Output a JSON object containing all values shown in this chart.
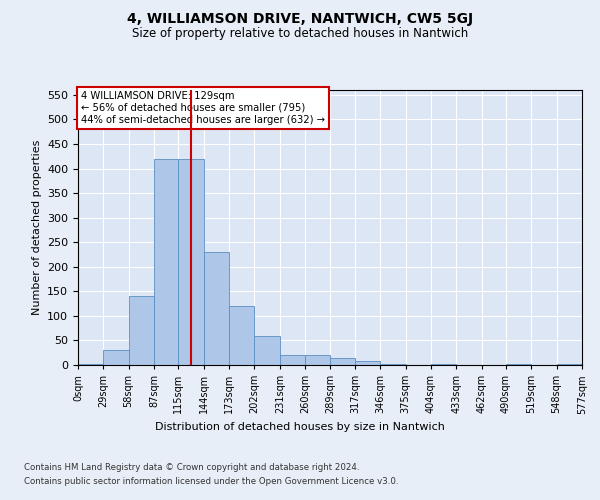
{
  "title": "4, WILLIAMSON DRIVE, NANTWICH, CW5 5GJ",
  "subtitle": "Size of property relative to detached houses in Nantwich",
  "xlabel": "Distribution of detached houses by size in Nantwich",
  "ylabel": "Number of detached properties",
  "footer1": "Contains HM Land Registry data © Crown copyright and database right 2024.",
  "footer2": "Contains public sector information licensed under the Open Government Licence v3.0.",
  "property_label": "4 WILLIAMSON DRIVE: 129sqm",
  "annotation_line1": "← 56% of detached houses are smaller (795)",
  "annotation_line2": "44% of semi-detached houses are larger (632) →",
  "bin_edges": [
    0,
    29,
    58,
    87,
    115,
    144,
    173,
    202,
    231,
    260,
    289,
    317,
    346,
    375,
    404,
    433,
    462,
    490,
    519,
    548,
    577
  ],
  "bin_labels": [
    "0sqm",
    "29sqm",
    "58sqm",
    "87sqm",
    "115sqm",
    "144sqm",
    "173sqm",
    "202sqm",
    "231sqm",
    "260sqm",
    "289sqm",
    "317sqm",
    "346sqm",
    "375sqm",
    "404sqm",
    "433sqm",
    "462sqm",
    "490sqm",
    "519sqm",
    "548sqm",
    "577sqm"
  ],
  "counts": [
    2,
    30,
    140,
    420,
    420,
    230,
    120,
    60,
    20,
    20,
    15,
    8,
    2,
    0,
    2,
    0,
    0,
    2,
    0,
    2
  ],
  "bar_color": "#aec6e8",
  "bar_edge_color": "#5a8fc2",
  "vline_x": 129,
  "vline_color": "#cc0000",
  "bg_color": "#e8eef7",
  "plot_bg_color": "#dce6f5",
  "annotation_box_color": "#ffffff",
  "annotation_box_edge": "#cc0000",
  "ylim": [
    0,
    560
  ],
  "yticks": [
    0,
    50,
    100,
    150,
    200,
    250,
    300,
    350,
    400,
    450,
    500,
    550
  ]
}
